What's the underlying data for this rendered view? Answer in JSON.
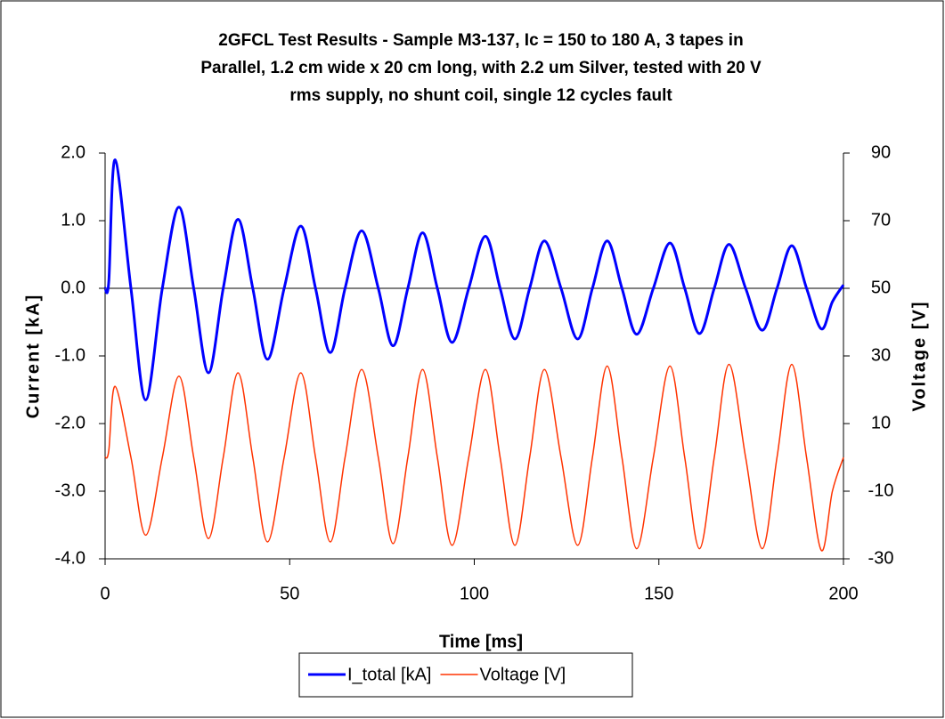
{
  "chart_data": {
    "type": "line",
    "title": [
      "2GFCL Test Results - Sample M3-137, Ic = 150 to 180 A, 3 tapes in",
      "Parallel, 1.2 cm wide x 20 cm long, with 2.2 um Silver, tested with 20 V",
      "rms supply, no shunt coil, single 12 cycles fault"
    ],
    "x_label": "Time [ms]",
    "y_label": "Current [kA]",
    "y2_label": "Voltage [V]",
    "x": [
      0,
      1,
      2.7,
      7,
      11,
      15.5,
      20,
      24,
      28,
      32,
      36,
      40,
      44,
      48.5,
      53,
      57,
      61,
      65,
      69.5,
      74,
      78,
      82,
      86,
      90,
      94,
      98.5,
      103,
      107,
      111,
      115,
      119,
      123.5,
      128,
      132,
      136,
      140,
      144,
      148.5,
      153,
      157,
      161,
      165,
      169,
      173.5,
      178,
      182,
      186,
      190,
      194,
      197,
      200
    ],
    "series": [
      {
        "name": "I_total [kA]",
        "color": "#0000ff",
        "axis": "y",
        "values": [
          0,
          0.1,
          1.9,
          0,
          -1.65,
          0,
          1.2,
          0,
          -1.25,
          0,
          1.02,
          0,
          -1.05,
          0,
          0.92,
          0,
          -0.95,
          0,
          0.85,
          0,
          -0.85,
          0,
          0.82,
          0,
          -0.8,
          0,
          0.77,
          0,
          -0.75,
          0,
          0.7,
          0,
          -0.75,
          0,
          0.7,
          0,
          -0.68,
          0,
          0.67,
          0,
          -0.67,
          0,
          0.65,
          0,
          -0.62,
          0,
          0.63,
          0,
          -0.6,
          -0.2,
          0.05
        ]
      },
      {
        "name": "Voltage [V]",
        "color": "#ff3300",
        "axis": "y2",
        "values": [
          0,
          2,
          21,
          0,
          -23,
          0,
          24,
          0,
          -24,
          0,
          25,
          0,
          -25,
          0,
          25,
          0,
          -25,
          0,
          26,
          0,
          -25.5,
          0,
          26,
          0,
          -26,
          0,
          26,
          0,
          -26,
          0,
          26,
          0,
          -26,
          0,
          27,
          0,
          -27,
          0,
          27,
          0,
          -27,
          0,
          27.5,
          0,
          -27,
          0,
          27.5,
          0,
          -27.5,
          -10,
          0
        ]
      }
    ],
    "xlim": [
      0,
      200
    ],
    "xticks": [
      0,
      50,
      100,
      150,
      200
    ],
    "ylim": [
      -4,
      2
    ],
    "yticks": [
      {
        "value": 2,
        "label": "2.0"
      },
      {
        "value": 1,
        "label": "1.0"
      },
      {
        "value": 0,
        "label": "0.0"
      },
      {
        "value": -1,
        "label": "-1.0"
      },
      {
        "value": -2,
        "label": "-2.0"
      },
      {
        "value": -3,
        "label": "-3.0"
      },
      {
        "value": -4,
        "label": "-4.0"
      }
    ],
    "y2lim": [
      -30,
      90
    ],
    "y2ticks": [
      90,
      70,
      50,
      30,
      10,
      -10,
      -30
    ],
    "legend": "bottom"
  }
}
